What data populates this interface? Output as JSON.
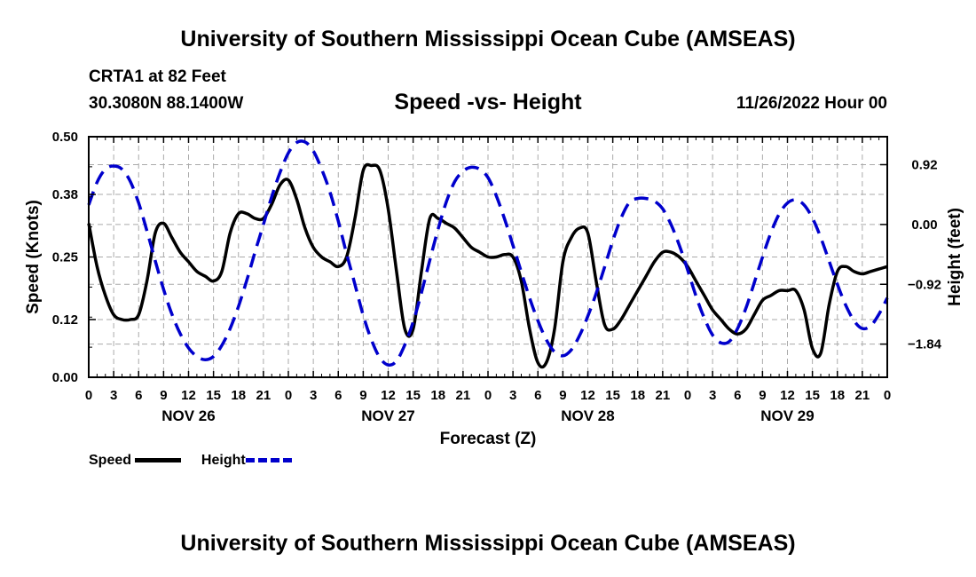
{
  "header": {
    "title": "University of Southern Mississippi Ocean Cube (AMSEAS)",
    "station": "CRTA1 at 82 Feet",
    "coordinates": "30.3080N  88.1400W",
    "date": "11/26/2022 Hour 00",
    "footer_title": "University of Southern Mississippi Ocean Cube (AMSEAS)"
  },
  "chart_data": {
    "type": "line",
    "title": "Speed -vs- Height",
    "xlabel": "Forecast (Z)",
    "ylabel": "Speed (Knots)",
    "y2label": "Height (feet)",
    "xlim": [
      0,
      96
    ],
    "ylim": [
      0,
      0.5
    ],
    "y2lim": [
      -2.35,
      1.35
    ],
    "x_ticks": [
      0,
      3,
      6,
      9,
      12,
      15,
      18,
      21,
      24,
      27,
      30,
      33,
      36,
      39,
      42,
      45,
      48,
      51,
      54,
      57,
      60,
      63,
      66,
      69,
      72,
      75,
      78,
      81,
      84,
      87,
      90,
      93,
      96
    ],
    "x_tick_labels": [
      "0",
      "3",
      "6",
      "9",
      "12",
      "15",
      "18",
      "21",
      "0",
      "3",
      "6",
      "9",
      "12",
      "15",
      "18",
      "21",
      "0",
      "3",
      "6",
      "9",
      "12",
      "15",
      "18",
      "21",
      "0",
      "3",
      "6",
      "9",
      "12",
      "15",
      "18",
      "21",
      "0"
    ],
    "day_labels": [
      {
        "label": "NOV 26",
        "x": 12
      },
      {
        "label": "NOV 27",
        "x": 36
      },
      {
        "label": "NOV 28",
        "x": 60
      },
      {
        "label": "NOV 29",
        "x": 84
      }
    ],
    "y_ticks": [
      0.0,
      0.12,
      0.25,
      0.38,
      0.5
    ],
    "y_tick_labels": [
      "0.00",
      "0.12",
      "0.25",
      "0.38",
      "0.50"
    ],
    "y2_ticks": [
      0.92,
      0.0,
      -0.92,
      -1.84
    ],
    "y2_tick_labels": [
      "0.92",
      "0.00",
      "−0.92",
      "−1.84"
    ],
    "grid": true,
    "series": [
      {
        "name": "Speed",
        "axis": "left",
        "color": "#000000",
        "style": "solid",
        "x": [
          0,
          1,
          2,
          3,
          4,
          5,
          6,
          7,
          8,
          9,
          10,
          11,
          12,
          13,
          14,
          15,
          16,
          17,
          18,
          19,
          20,
          21,
          22,
          23,
          24,
          25,
          26,
          27,
          28,
          29,
          30,
          31,
          32,
          33,
          34,
          35,
          36,
          37,
          38,
          39,
          40,
          41,
          42,
          43,
          44,
          45,
          46,
          47,
          48,
          49,
          50,
          51,
          52,
          53,
          54,
          55,
          56,
          57,
          58,
          59,
          60,
          61,
          62,
          63,
          64,
          65,
          66,
          67,
          68,
          69,
          70,
          71,
          72,
          73,
          74,
          75,
          76,
          77,
          78,
          79,
          80,
          81,
          82,
          83,
          84,
          85,
          86,
          87,
          88,
          89,
          90,
          91,
          92,
          93,
          94,
          95,
          96
        ],
        "values": [
          0.32,
          0.23,
          0.17,
          0.13,
          0.12,
          0.12,
          0.13,
          0.2,
          0.3,
          0.32,
          0.29,
          0.26,
          0.24,
          0.22,
          0.21,
          0.2,
          0.22,
          0.3,
          0.34,
          0.34,
          0.33,
          0.33,
          0.36,
          0.4,
          0.41,
          0.37,
          0.31,
          0.27,
          0.25,
          0.24,
          0.23,
          0.25,
          0.33,
          0.43,
          0.44,
          0.43,
          0.35,
          0.22,
          0.1,
          0.1,
          0.22,
          0.33,
          0.33,
          0.32,
          0.31,
          0.29,
          0.27,
          0.26,
          0.25,
          0.25,
          0.255,
          0.25,
          0.2,
          0.1,
          0.03,
          0.03,
          0.1,
          0.24,
          0.29,
          0.31,
          0.3,
          0.2,
          0.11,
          0.1,
          0.12,
          0.15,
          0.18,
          0.21,
          0.24,
          0.26,
          0.26,
          0.25,
          0.23,
          0.2,
          0.17,
          0.14,
          0.12,
          0.1,
          0.09,
          0.1,
          0.13,
          0.16,
          0.17,
          0.18,
          0.18,
          0.18,
          0.14,
          0.06,
          0.05,
          0.15,
          0.22,
          0.23,
          0.22,
          0.215,
          0.22,
          0.225,
          0.23
        ]
      },
      {
        "name": "Height",
        "axis": "right",
        "color": "#0000cc",
        "style": "dashed",
        "x": [
          0,
          1,
          2,
          3,
          4,
          5,
          6,
          7,
          8,
          9,
          10,
          11,
          12,
          13,
          14,
          15,
          16,
          17,
          18,
          19,
          20,
          21,
          22,
          23,
          24,
          25,
          26,
          27,
          28,
          29,
          30,
          31,
          32,
          33,
          34,
          35,
          36,
          37,
          38,
          39,
          40,
          41,
          42,
          43,
          44,
          45,
          46,
          47,
          48,
          49,
          50,
          51,
          52,
          53,
          54,
          55,
          56,
          57,
          58,
          59,
          60,
          61,
          62,
          63,
          64,
          65,
          66,
          67,
          68,
          69,
          70,
          71,
          72,
          73,
          74,
          75,
          76,
          77,
          78,
          79,
          80,
          81,
          82,
          83,
          84,
          85,
          86,
          87,
          88,
          89,
          90,
          91,
          92,
          93,
          94,
          95,
          96
        ],
        "values": [
          0.3,
          0.65,
          0.85,
          0.9,
          0.85,
          0.66,
          0.33,
          -0.1,
          -0.56,
          -1.0,
          -1.38,
          -1.68,
          -1.9,
          -2.03,
          -2.08,
          -2.03,
          -1.86,
          -1.6,
          -1.26,
          -0.86,
          -0.42,
          0.0,
          0.43,
          0.8,
          1.1,
          1.26,
          1.27,
          1.13,
          0.85,
          0.5,
          0.05,
          -0.45,
          -0.92,
          -1.4,
          -1.78,
          -2.05,
          -2.16,
          -2.1,
          -1.85,
          -1.5,
          -1.05,
          -0.55,
          -0.07,
          0.35,
          0.66,
          0.82,
          0.88,
          0.85,
          0.72,
          0.44,
          0.08,
          -0.32,
          -0.73,
          -1.13,
          -1.48,
          -1.77,
          -1.96,
          -2.02,
          -1.93,
          -1.71,
          -1.41,
          -1.06,
          -0.66,
          -0.25,
          0.1,
          0.34,
          0.4,
          0.4,
          0.36,
          0.24,
          0.0,
          -0.32,
          -0.7,
          -1.1,
          -1.44,
          -1.7,
          -1.82,
          -1.8,
          -1.6,
          -1.29,
          -0.9,
          -0.5,
          -0.13,
          0.16,
          0.33,
          0.38,
          0.3,
          0.1,
          -0.2,
          -0.56,
          -0.92,
          -1.24,
          -1.48,
          -1.6,
          -1.56,
          -1.38,
          -1.13
        ]
      }
    ],
    "legend": {
      "position": "bottom-left",
      "entries": [
        {
          "label": "Speed",
          "color": "#000000",
          "style": "solid"
        },
        {
          "label": "Height",
          "color": "#0000cc",
          "style": "dashed"
        }
      ]
    }
  }
}
